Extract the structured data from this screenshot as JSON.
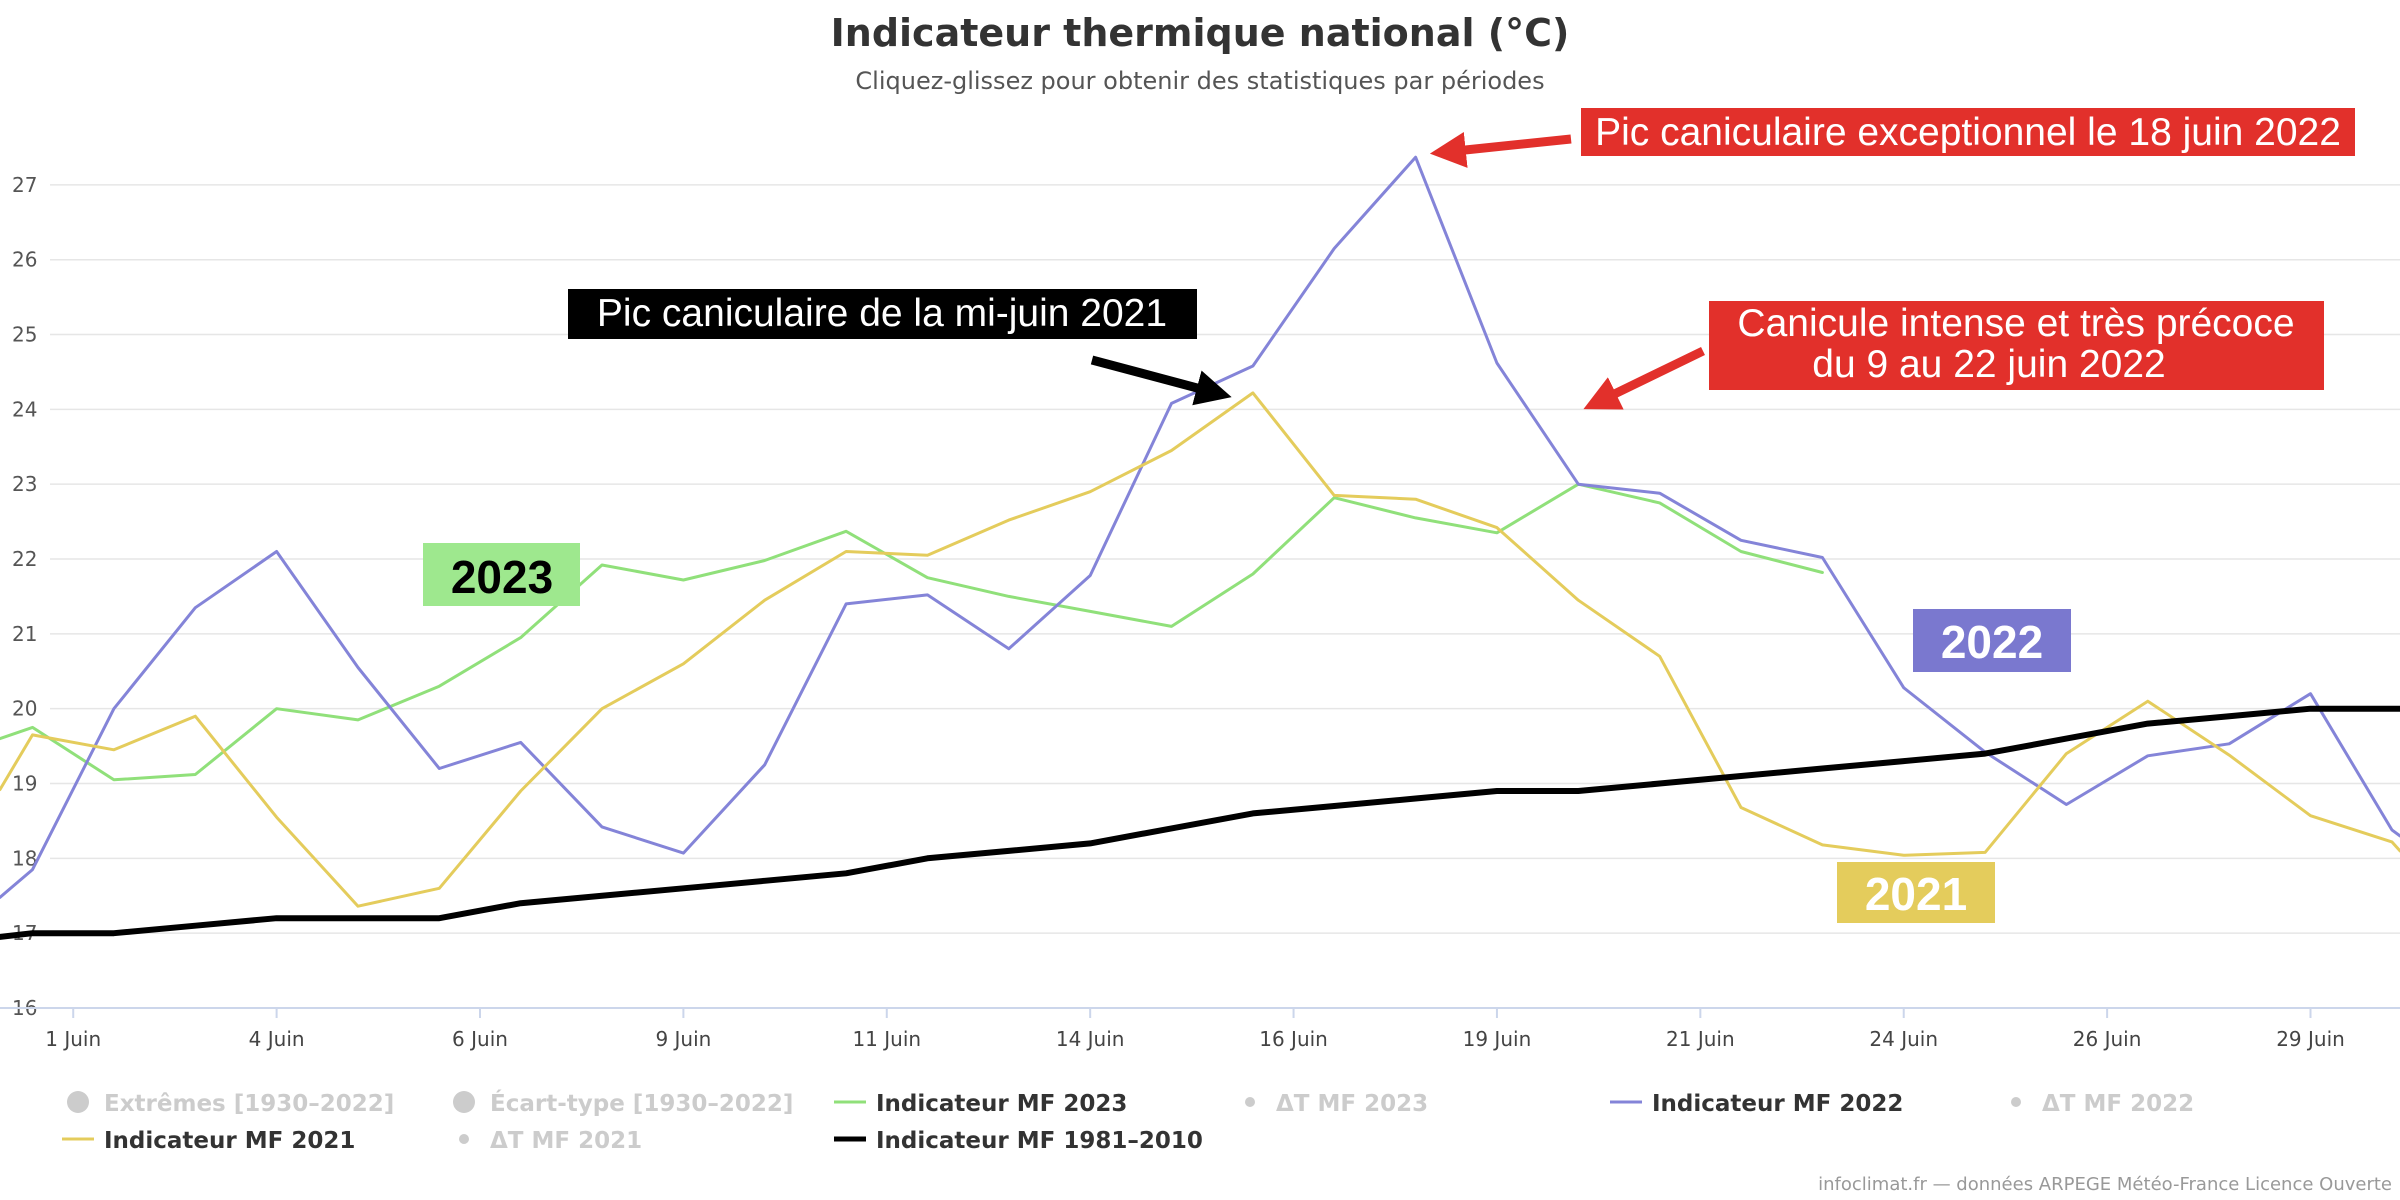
{
  "chart_data": {
    "type": "line",
    "title": "Indicateur thermique national (°C)",
    "subtitle": "Cliquez-glissez pour obtenir des statistiques par périodes",
    "x_range": [
      0.6,
      30.1
    ],
    "ylim": [
      16,
      27.8
    ],
    "y_ticks": [
      16,
      17,
      18,
      19,
      20,
      21,
      22,
      23,
      24,
      25,
      26,
      27
    ],
    "x_ticks": [
      {
        "x": 1.5,
        "label": "1 Juin"
      },
      {
        "x": 4,
        "label": "4 Juin"
      },
      {
        "x": 6.5,
        "label": "6 Juin"
      },
      {
        "x": 9,
        "label": "9 Juin"
      },
      {
        "x": 11.5,
        "label": "11 Juin"
      },
      {
        "x": 14,
        "label": "14 Juin"
      },
      {
        "x": 16.5,
        "label": "16 Juin"
      },
      {
        "x": 19,
        "label": "19 Juin"
      },
      {
        "x": 21.5,
        "label": "21 Juin"
      },
      {
        "x": 24,
        "label": "24 Juin"
      },
      {
        "x": 26.5,
        "label": "26 Juin"
      },
      {
        "x": 29,
        "label": "29 Juin"
      }
    ],
    "grid": true,
    "legend_position": "bottom",
    "series": [
      {
        "name": "Indicateur MF 2023",
        "color": "#90e07a",
        "width": 3,
        "x": [
          0.6,
          1,
          2,
          3,
          4,
          5,
          6,
          7,
          8,
          9,
          10,
          11,
          12,
          13,
          14,
          15,
          16,
          17,
          18,
          19,
          20,
          21,
          22,
          23
        ],
        "y": [
          19.6,
          19.75,
          19.05,
          19.12,
          20.0,
          19.85,
          20.3,
          20.95,
          21.92,
          21.72,
          21.98,
          22.37,
          21.75,
          21.5,
          21.3,
          21.1,
          21.8,
          22.82,
          22.55,
          22.35,
          23.0,
          22.75,
          22.1,
          21.82
        ]
      },
      {
        "name": "Indicateur MF 2022",
        "color": "#8484d8",
        "width": 3,
        "x": [
          0.6,
          1,
          2,
          3,
          4,
          5,
          6,
          7,
          8,
          9,
          10,
          11,
          12,
          13,
          14,
          15,
          16,
          17,
          18,
          19,
          20,
          21,
          22,
          23,
          24,
          25,
          26,
          27,
          28,
          29,
          30,
          30.1
        ],
        "y": [
          17.48,
          17.85,
          20.0,
          21.35,
          22.1,
          20.55,
          19.2,
          19.55,
          18.42,
          18.07,
          19.25,
          21.4,
          21.52,
          20.8,
          21.78,
          24.08,
          24.58,
          26.15,
          27.37,
          24.62,
          23.0,
          22.88,
          22.25,
          22.02,
          20.28,
          19.42,
          18.72,
          19.37,
          19.53,
          20.2,
          18.38,
          18.3
        ]
      },
      {
        "name": "Indicateur MF 2021",
        "color": "#e4cc5c",
        "width": 3,
        "x": [
          0.6,
          1,
          2,
          3,
          4,
          5,
          6,
          7,
          8,
          9,
          10,
          11,
          12,
          13,
          14,
          15,
          16,
          17,
          18,
          19,
          20,
          21,
          22,
          23,
          24,
          25,
          26,
          27,
          28,
          29,
          30,
          30.1
        ],
        "y": [
          18.92,
          19.65,
          19.45,
          19.9,
          18.55,
          17.36,
          17.6,
          18.9,
          20.0,
          20.6,
          21.45,
          22.1,
          22.05,
          22.52,
          22.9,
          23.45,
          24.22,
          22.85,
          22.8,
          22.42,
          21.45,
          20.7,
          18.68,
          18.18,
          18.04,
          18.08,
          19.4,
          20.1,
          19.38,
          18.57,
          18.22,
          18.1
        ]
      },
      {
        "name": "Indicateur MF 1981-2010",
        "color": "#000000",
        "width": 6,
        "x": [
          0.6,
          1,
          2,
          3,
          4,
          5,
          6,
          7,
          8,
          9,
          10,
          11,
          12,
          13,
          14,
          15,
          16,
          17,
          18,
          19,
          20,
          21,
          22,
          23,
          24,
          25,
          26,
          27,
          28,
          29,
          30,
          30.1
        ],
        "y": [
          16.95,
          17.0,
          17.0,
          17.1,
          17.2,
          17.2,
          17.2,
          17.4,
          17.5,
          17.6,
          17.7,
          17.8,
          18.0,
          18.1,
          18.2,
          18.4,
          18.6,
          18.7,
          18.8,
          18.9,
          18.9,
          19.0,
          19.1,
          19.2,
          19.3,
          19.4,
          19.6,
          19.8,
          19.9,
          20.0,
          20.0,
          20.0
        ]
      }
    ],
    "annotations": [
      {
        "text": "Pic caniculaire exceptionnel le 18 juin 2022",
        "bg": "#e2302b",
        "fg": "#ffffff"
      },
      {
        "text": "Canicule intense et très précoce",
        "text2": "du 9 au 22 juin 2022",
        "bg": "#e2302b",
        "fg": "#ffffff"
      },
      {
        "text": "Pic caniculaire de la mi-juin 2021",
        "bg": "#000000",
        "fg": "#ffffff"
      }
    ],
    "year_labels": [
      {
        "text": "2023",
        "bg": "#9ee88e",
        "fg": "#000000"
      },
      {
        "text": "2022",
        "bg": "#7a78cf",
        "fg": "#ffffff"
      },
      {
        "text": "2021",
        "bg": "#e4cc5c",
        "fg": "#ffffff"
      }
    ]
  },
  "legend": [
    {
      "label": "Extrêmes [1930–2022]",
      "type": "dot-large",
      "color": "#cccccc",
      "enabled": false
    },
    {
      "label": "Écart-type [1930–2022]",
      "type": "dot-large",
      "color": "#cccccc",
      "enabled": false
    },
    {
      "label": "Indicateur MF 2023",
      "type": "line",
      "color": "#90e07a",
      "enabled": true
    },
    {
      "label": "ΔT MF 2023",
      "type": "dot-small",
      "color": "#cccccc",
      "enabled": false
    },
    {
      "label": "Indicateur MF 2022",
      "type": "line",
      "color": "#8484d8",
      "enabled": true
    },
    {
      "label": "ΔT MF 2022",
      "type": "dot-small",
      "color": "#cccccc",
      "enabled": false
    },
    {
      "label": "Indicateur MF 2021",
      "type": "line",
      "color": "#e4cc5c",
      "enabled": true
    },
    {
      "label": "ΔT MF 2021",
      "type": "dot-small",
      "color": "#cccccc",
      "enabled": false
    },
    {
      "label": "Indicateur MF 1981–2010",
      "type": "line-bold",
      "color": "#000000",
      "enabled": true
    }
  ],
  "credits": "infoclimat.fr — données ARPEGE Météo-France Licence Ouverte"
}
